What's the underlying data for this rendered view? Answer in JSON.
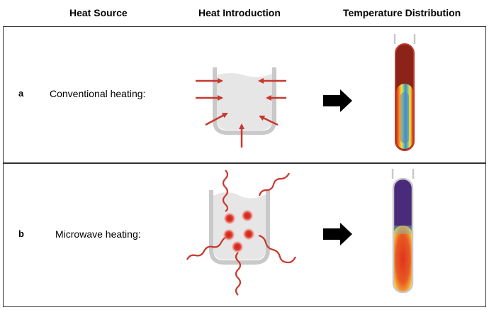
{
  "headers": {
    "heat_source": "Heat Source",
    "heat_introduction": "Heat Introduction",
    "temperature_distribution": "Temperature Distribution"
  },
  "rows": [
    {
      "letter": "a",
      "label": "Conventional heating:"
    },
    {
      "letter": "b",
      "label": "Microwave heating:"
    }
  ],
  "colors": {
    "arrow_red": "#c8382e",
    "vessel_gray": "#c9c9c9",
    "liquid_gray": "#e6e6e6",
    "hot_dark_red": "#8b2318",
    "cool_purple": "#4a2a7a",
    "arrow_black": "#000000"
  }
}
